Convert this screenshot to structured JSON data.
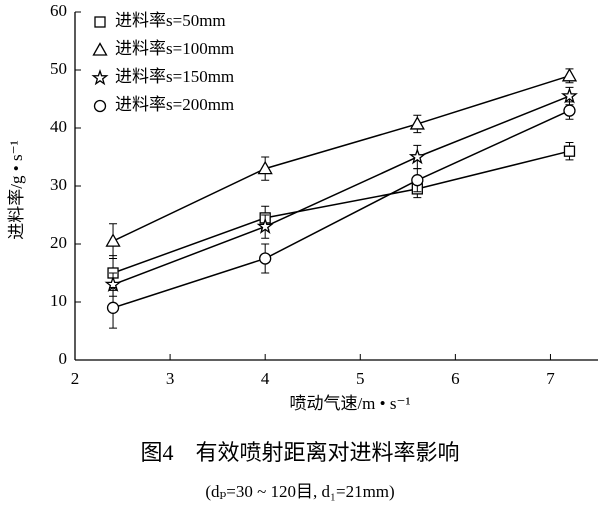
{
  "chart_data": {
    "type": "line",
    "x_label": "喷动气速/m • s⁻¹",
    "y_label": "进料率/g • s⁻¹",
    "caption": "图4　有效喷射距离对进料率影响",
    "subcaption": "(dₚ=30 ~ 120目, d₁=21mm)",
    "x": [
      2.4,
      4,
      5.6,
      7.2
    ],
    "series": [
      {
        "name": "进料率s=50mm",
        "color": "#000000",
        "marker": "square",
        "values": [
          15,
          24.5,
          29.5,
          36
        ],
        "errors": [
          3,
          2,
          1.5,
          1.5
        ]
      },
      {
        "name": "进料率s=100mm",
        "color": "#000000",
        "marker": "triangle",
        "values": [
          20.5,
          33,
          40.7,
          49
        ],
        "errors": [
          3,
          2,
          1.5,
          1.2
        ]
      },
      {
        "name": "进料率s=150mm",
        "color": "#000000",
        "marker": "star",
        "values": [
          13,
          23,
          35,
          45.5
        ],
        "errors": [
          2,
          2,
          2,
          1.5
        ]
      },
      {
        "name": "进料率s=200mm",
        "color": "#000000",
        "marker": "circle",
        "values": [
          9,
          17.5,
          31,
          43
        ],
        "errors": [
          3.5,
          2.5,
          2,
          1.5
        ]
      }
    ],
    "xlim": [
      2,
      7.5
    ],
    "ylim": [
      0,
      60
    ],
    "xticks": [
      2,
      3,
      4,
      5,
      6,
      7
    ],
    "yticks": [
      0,
      10,
      20,
      30,
      40,
      50,
      60
    ]
  }
}
